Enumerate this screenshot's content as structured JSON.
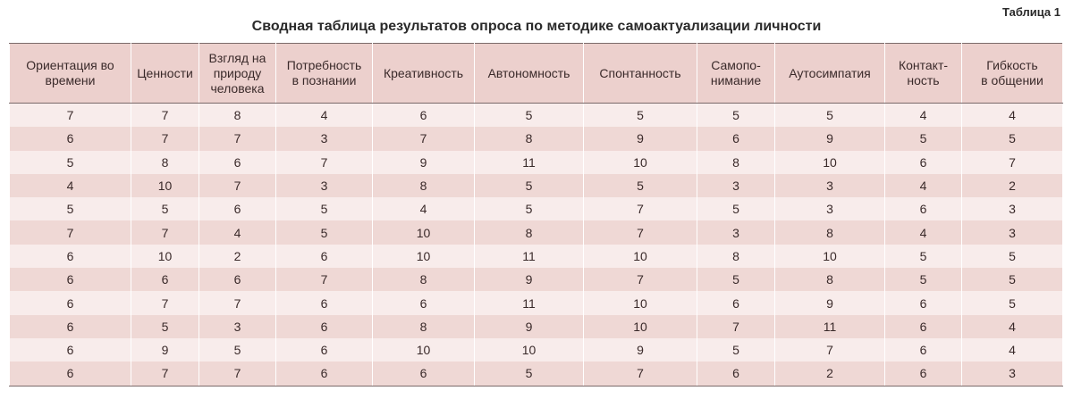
{
  "table_label": "Таблица 1",
  "title": "Сводная таблица результатов опроса по методике самоактуализации личности",
  "headers": [
    "Ориентация во\nвремени",
    "Ценности",
    "Взгляд на\nприроду\nчеловека",
    "Потребность\nв познании",
    "Креативность",
    "Автономность",
    "Спонтанность",
    "Самопо-\nнимание",
    "Аутосимпатия",
    "Контакт-\nность",
    "Гибкость\nв общении"
  ],
  "rows": [
    [
      "7",
      "7",
      "8",
      "4",
      "6",
      "5",
      "5",
      "5",
      "5",
      "4",
      "4"
    ],
    [
      "6",
      "7",
      "7",
      "3",
      "7",
      "8",
      "9",
      "6",
      "9",
      "5",
      "5"
    ],
    [
      "5",
      "8",
      "6",
      "7",
      "9",
      "11",
      "10",
      "8",
      "10",
      "6",
      "7"
    ],
    [
      "4",
      "10",
      "7",
      "3",
      "8",
      "5",
      "5",
      "3",
      "3",
      "4",
      "2"
    ],
    [
      "5",
      "5",
      "6",
      "5",
      "4",
      "5",
      "7",
      "5",
      "3",
      "6",
      "3"
    ],
    [
      "7",
      "7",
      "4",
      "5",
      "10",
      "8",
      "7",
      "3",
      "8",
      "4",
      "3"
    ],
    [
      "6",
      "10",
      "2",
      "6",
      "10",
      "11",
      "10",
      "8",
      "10",
      "5",
      "5"
    ],
    [
      "6",
      "6",
      "6",
      "7",
      "8",
      "9",
      "7",
      "5",
      "8",
      "5",
      "5"
    ],
    [
      "6",
      "7",
      "7",
      "6",
      "6",
      "11",
      "10",
      "6",
      "9",
      "6",
      "5"
    ],
    [
      "6",
      "5",
      "3",
      "6",
      "8",
      "9",
      "10",
      "7",
      "11",
      "6",
      "4"
    ],
    [
      "6",
      "9",
      "5",
      "6",
      "10",
      "10",
      "9",
      "5",
      "7",
      "6",
      "4"
    ],
    [
      "6",
      "7",
      "7",
      "6",
      "6",
      "5",
      "7",
      "6",
      "2",
      "6",
      "3"
    ]
  ]
}
